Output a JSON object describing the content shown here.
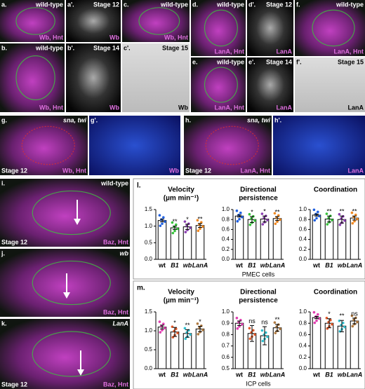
{
  "images": [
    {
      "label": "a.",
      "top": "wild-type",
      "bottom": "Wb, Hnt"
    },
    {
      "label": "a'.",
      "top": "Stage 12",
      "bottom": "Wb"
    },
    {
      "label": "c.",
      "top": "wild-type",
      "bottom": "Wb, Hnt"
    },
    {
      "label": "b.",
      "top": "wild-type",
      "bottom": "Wb, Hnt"
    },
    {
      "label": "b'.",
      "top": "Stage 14",
      "bottom": "Wb"
    },
    {
      "label": "c'.",
      "top": "Stage 15",
      "bottom": "Wb"
    },
    {
      "label": "d.",
      "top": "wild-type",
      "bottom": "LanA, Hnt"
    },
    {
      "label": "d'.",
      "top": "Stage 12",
      "bottom": "LanA"
    },
    {
      "label": "f.",
      "top": "wild-type",
      "bottom": "LanA, Hnt"
    },
    {
      "label": "e.",
      "top": "wild-type",
      "bottom": "LanA, Hnt"
    },
    {
      "label": "e'.",
      "top": "Stage 14",
      "bottom": "LanA"
    },
    {
      "label": "f'.",
      "top": "Stage 15",
      "bottom": "LanA"
    },
    {
      "label": "g.",
      "top": "sna, twi",
      "bottom": "Wb, Hnt",
      "corner": "Stage 12"
    },
    {
      "label": "g'.",
      "bottom": "Wb"
    },
    {
      "label": "h.",
      "top": "sna, twi",
      "bottom": "LanA, Hnt",
      "corner": "Stage 12"
    },
    {
      "label": "h'.",
      "bottom": "LanA"
    },
    {
      "label": "i.",
      "top": "wild-type",
      "bottom": "Baz, Hnt",
      "corner": "Stage 12"
    },
    {
      "label": "j.",
      "top": "wb",
      "bottom": "Baz, Hnt"
    },
    {
      "label": "k.",
      "top": "LanA",
      "bottom": "Baz, Hnt",
      "corner": "Stage 12"
    }
  ],
  "panel_labels": [
    "l.",
    "m."
  ],
  "chart_data": [
    {
      "type": "bar",
      "title": "Velocity",
      "subtitle": "(µm min⁻¹)",
      "categories": [
        "wt",
        "B1",
        "wb",
        "LanA"
      ],
      "colors": [
        "#1e5fe0",
        "#36c23a",
        "#8a3fb0",
        "#f08a24"
      ],
      "values": [
        1.17,
        0.95,
        0.98,
        1.02
      ],
      "errors": [
        0.04,
        0.05,
        0.08,
        0.06
      ],
      "sig": [
        null,
        "**",
        "*",
        "**"
      ],
      "ylim": [
        0,
        1.5
      ],
      "yticks": [
        {
          "value": 0,
          "label": "0.0"
        },
        {
          "value": 0.5,
          "label": "0.5"
        },
        {
          "value": 1,
          "label": "1.0"
        },
        {
          "value": 1.5,
          "label": "1.5"
        }
      ]
    },
    {
      "type": "bar",
      "title": "Directional",
      "subtitle": "persistence",
      "xlabel": "PMEC cells",
      "categories": [
        "wt",
        "B1",
        "wb",
        "LanA"
      ],
      "colors": [
        "#1e5fe0",
        "#36c23a",
        "#8a3fb0",
        "#f08a24"
      ],
      "values": [
        0.87,
        0.8,
        0.81,
        0.82
      ],
      "errors": [
        0.02,
        0.06,
        0.06,
        0.04
      ],
      "sig": [
        null,
        "*",
        "*",
        "**"
      ],
      "ylim": [
        0,
        1
      ],
      "yticks": [
        {
          "value": 0,
          "label": "0.0"
        },
        {
          "value": 0.2,
          "label": "0.2"
        },
        {
          "value": 0.4,
          "label": "0.4"
        },
        {
          "value": 0.6,
          "label": "0.6"
        },
        {
          "value": 0.8,
          "label": "0.8"
        },
        {
          "value": 1,
          "label": "1.0"
        }
      ]
    },
    {
      "type": "bar",
      "title": "Coordination",
      "categories": [
        "wt",
        "B1",
        "wb",
        "LanA"
      ],
      "colors": [
        "#1e5fe0",
        "#36c23a",
        "#8a3fb0",
        "#f08a24"
      ],
      "values": [
        0.89,
        0.81,
        0.8,
        0.83
      ],
      "errors": [
        0.02,
        0.06,
        0.07,
        0.04
      ],
      "sig": [
        null,
        "**",
        "**",
        "**"
      ],
      "ylim": [
        0,
        1
      ],
      "yticks": [
        {
          "value": 0,
          "label": "0.0"
        },
        {
          "value": 0.2,
          "label": "0.2"
        },
        {
          "value": 0.4,
          "label": "0.4"
        },
        {
          "value": 0.6,
          "label": "0.6"
        },
        {
          "value": 0.8,
          "label": "0.8"
        },
        {
          "value": 1,
          "label": "1.0"
        }
      ]
    },
    {
      "type": "bar",
      "title": "Velocity",
      "subtitle": "(µm min⁻¹)",
      "categories": [
        "wt",
        "B1",
        "wb",
        "LanA"
      ],
      "colors": [
        "#e040b0",
        "#e05a2a",
        "#30c0d0",
        "#b07a40"
      ],
      "values": [
        1.1,
        0.97,
        0.93,
        1.05
      ],
      "errors": [
        0.05,
        0.12,
        0.1,
        0.07
      ],
      "sig": [
        null,
        "*",
        "**",
        "*"
      ],
      "ylim": [
        0,
        1.5
      ],
      "yticks": [
        {
          "value": 0,
          "label": "0.0"
        },
        {
          "value": 0.5,
          "label": "0.5"
        },
        {
          "value": 1,
          "label": "1.0"
        },
        {
          "value": 1.5,
          "label": "1.5"
        }
      ]
    },
    {
      "type": "bar",
      "title": "Directional",
      "subtitle": "persistence",
      "xlabel": "ICP cells",
      "categories": [
        "wt",
        "B1",
        "wb",
        "LanA"
      ],
      "colors": [
        "#e040b0",
        "#e05a2a",
        "#30c0d0",
        "#b07a40"
      ],
      "values": [
        0.9,
        0.81,
        0.79,
        0.86
      ],
      "errors": [
        0.02,
        0.07,
        0.08,
        0.03
      ],
      "sig": [
        null,
        "ns",
        "ns",
        "**"
      ],
      "ylim": [
        0.5,
        1
      ],
      "yticks": [
        {
          "value": 0.5,
          "label": "0.5"
        },
        {
          "value": 0.6,
          "label": "0.6"
        },
        {
          "value": 0.7,
          "label": "0.7"
        },
        {
          "value": 0.8,
          "label": "0.8"
        },
        {
          "value": 0.9,
          "label": "0.9"
        },
        {
          "value": 1,
          "label": "1.0"
        }
      ]
    },
    {
      "type": "bar",
      "title": "Coordination",
      "categories": [
        "wt",
        "B1",
        "wb",
        "LanA"
      ],
      "colors": [
        "#e040b0",
        "#e05a2a",
        "#30c0d0",
        "#b07a40"
      ],
      "values": [
        0.9,
        0.8,
        0.75,
        0.84
      ],
      "errors": [
        0.02,
        0.08,
        0.1,
        0.05
      ],
      "sig": [
        null,
        "*",
        "**",
        "ns"
      ],
      "ylim": [
        0,
        1
      ],
      "yticks": [
        {
          "value": 0,
          "label": "0.0"
        },
        {
          "value": 0.2,
          "label": "0.2"
        },
        {
          "value": 0.4,
          "label": "0.4"
        },
        {
          "value": 0.6,
          "label": "0.6"
        },
        {
          "value": 0.8,
          "label": "0.8"
        },
        {
          "value": 1,
          "label": "1.0"
        }
      ]
    }
  ]
}
